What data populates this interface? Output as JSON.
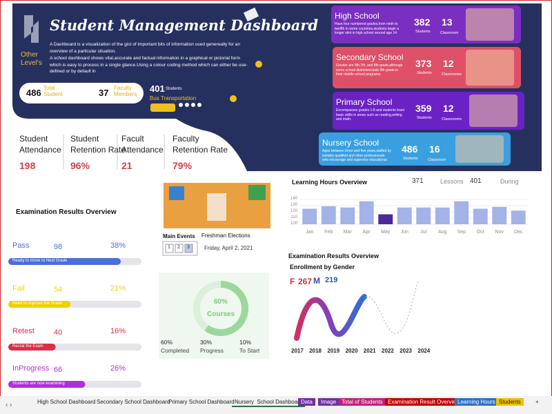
{
  "header": {
    "logo": "Other Level's",
    "title": "Student Management Dashboard",
    "description": [
      "A Dashboard is a visualization of the gist of important bits of information used genereally for an overview of a particular situation.",
      "A school dashboard shows vital,accurate and factual information in a graphical or pictorial form which is easy to process in a single glance.Using a colour coding method which can either be use-defined or by default in"
    ]
  },
  "stats": [
    {
      "number": 486,
      "label": "Total Student"
    },
    {
      "number": 37,
      "label": "Faculty Members"
    }
  ],
  "bus": {
    "number": 401,
    "unit": "Students",
    "label": "Bus Transportation"
  },
  "schools": [
    {
      "name": "High School",
      "description": "Have four numbered grades,from ninth to twelfth in some countries,students begin a longer stint in high school around age 14",
      "students": 382,
      "students_label": "Students",
      "classrooms": 13,
      "classrooms_label": "Classroom",
      "color": "#7a2fc0"
    },
    {
      "name": "Secondary School",
      "description": "Greater are 6th,7th, and 8th grade,although some school districtsinclude 9th grade in their middle school programs.",
      "students": 373,
      "students_label": "Students",
      "classrooms": 12,
      "classrooms_label": "Classrooms",
      "color": "#de5068"
    },
    {
      "name": "Primary School",
      "description": "Encompasses grades 1-8 and students learn basic skills in areas such as reading,writing and math.",
      "students": 359,
      "students_label": "Students",
      "classrooms": 12,
      "classrooms_label": "Classrooms",
      "color": "#6b22c4"
    },
    {
      "name": "Nursery School",
      "description": "Ages between three and five years,staffed by suitably qualified and other professionals who encourage and supervise educational",
      "students": 486,
      "students_label": "Students",
      "classrooms": 16,
      "classrooms_label": "Classroom",
      "color": "#3a9fe0"
    }
  ],
  "kpis": [
    {
      "label": "Student Attendance",
      "value": 198
    },
    {
      "label": "Student Retention Rate",
      "value": "96%"
    },
    {
      "label": "Facult Attendance",
      "value": 21
    },
    {
      "label": "Faculty Retention Rate",
      "value": "79%"
    }
  ],
  "exam": {
    "title": "Examination Results Overview",
    "rows": [
      {
        "label": "Pass",
        "count": 98,
        "percent": 38,
        "percent_label": "38%",
        "caption": "Ready to move to Next Grade",
        "color": "#4a6fd8"
      },
      {
        "label": "Fail",
        "count": 54,
        "percent": 21,
        "percent_label": "21%",
        "caption": "Need to improve the Grade",
        "color": "#f0d000"
      },
      {
        "label": "Retest",
        "count": 40,
        "percent": 16,
        "percent_label": "16%",
        "caption": "Recrat the Exam",
        "color": "#d83048"
      },
      {
        "label": "InProgress",
        "count": 66,
        "percent": 26,
        "percent_label": "26%",
        "caption": "Students are now examining",
        "color": "#b030d8"
      }
    ]
  },
  "events": {
    "title": "Main Events",
    "pages": [
      "1",
      "2",
      "3"
    ],
    "event": "Freshman Elections",
    "date": "Friday, April 2, 2021"
  },
  "courses": {
    "percent": 60,
    "label": "60%",
    "name": "Courses",
    "legend": [
      {
        "value": "60%",
        "label": "Completed"
      },
      {
        "value": "30%",
        "label": "Progress"
      },
      {
        "value": "10%",
        "label": "To Start"
      }
    ]
  },
  "learning_hours": {
    "type": "bar",
    "title": "Learning Hours Overview",
    "lessons": 371,
    "lessons_label": "Lessons",
    "during": 401,
    "during_label": "During",
    "categories": [
      "Jan",
      "Feb",
      "Mar",
      "Apr",
      "May",
      "Jun",
      "Jul",
      "Aug",
      "Sep",
      "Oct",
      "Nov",
      "Dec"
    ],
    "values": [
      125,
      129,
      127,
      137,
      116,
      127,
      127,
      127,
      137,
      125,
      128,
      122
    ],
    "colors": [
      "#a3b3e8",
      "#a3b3e8",
      "#a3b3e8",
      "#a3b3e8",
      "#4a2a9a",
      "#a3b3e8",
      "#a3b3e8",
      "#a3b3e8",
      "#a3b3e8",
      "#a3b3e8",
      "#a3b3e8",
      "#a3b3e8"
    ],
    "ylim": [
      100,
      140
    ],
    "yticks": [
      100,
      110,
      120,
      130,
      140
    ]
  },
  "enrollment": {
    "title": "Examination Results Overview",
    "subtitle": "Enrollment by Gender",
    "female_label": "F",
    "female": 267,
    "male_label": "M",
    "male": 219,
    "years": [
      2017,
      2018,
      2019,
      2020,
      2021,
      2022,
      2023,
      2024
    ]
  },
  "tabs": [
    {
      "label": "High School Dashboard"
    },
    {
      "label": "Secondary School Dashboard"
    },
    {
      "label": "Primary School Dashboard"
    },
    {
      "label": "Nursery  School Dashboard",
      "active": true
    },
    {
      "label": "Data",
      "color": "#7030a0"
    },
    {
      "label": "Image",
      "color": "#7030a0"
    },
    {
      "label": "Total of Students",
      "color": "#c0207a"
    },
    {
      "label": "Examination Result Overview",
      "color": "#c00000"
    },
    {
      "label": "Learning Hours",
      "color": "#3070c0"
    },
    {
      "label": "Students",
      "color": "#f0c000"
    },
    {
      "label": "+"
    }
  ]
}
